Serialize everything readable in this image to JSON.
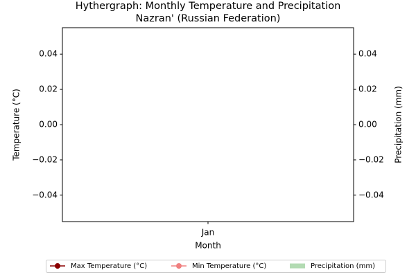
{
  "chart_data": {
    "type": "line",
    "title": "Hythergraph: Monthly Temperature and Precipitation",
    "subtitle": "Nazran' (Russian Federation)",
    "x_label": "Month",
    "y_label": "Temperature (°C)",
    "y2_label": "Precipitation (mm)",
    "categories": [
      "Jan"
    ],
    "series": [
      {
        "name": "Max Temperature (°C)",
        "color": "#8b0000",
        "type": "line",
        "values": [
          null
        ]
      },
      {
        "name": "Min Temperature (°C)",
        "color": "#f08080",
        "type": "line",
        "values": [
          null
        ]
      },
      {
        "name": "Precipitation (mm)",
        "color": "#b3dbb3",
        "type": "bar",
        "axis": "y2",
        "values": [
          null
        ]
      }
    ],
    "ylim": [
      -0.055,
      0.055
    ],
    "yticks": [
      {
        "value": -0.04,
        "label": "−0.04"
      },
      {
        "value": -0.02,
        "label": "−0.02"
      },
      {
        "value": 0,
        "label": "0.00"
      },
      0.02,
      0.04
    ],
    "y2lim": [
      -0.055,
      0.055
    ],
    "y2ticks": [
      {
        "value": -0.04,
        "label": "−0.04"
      },
      {
        "value": -0.02,
        "label": "−0.02"
      },
      {
        "value": 0,
        "label": "0.00"
      },
      0.02,
      0.04
    ],
    "y_color": "#ff0000",
    "y2_color": "#008000",
    "legend": "bottom",
    "grid": false
  }
}
